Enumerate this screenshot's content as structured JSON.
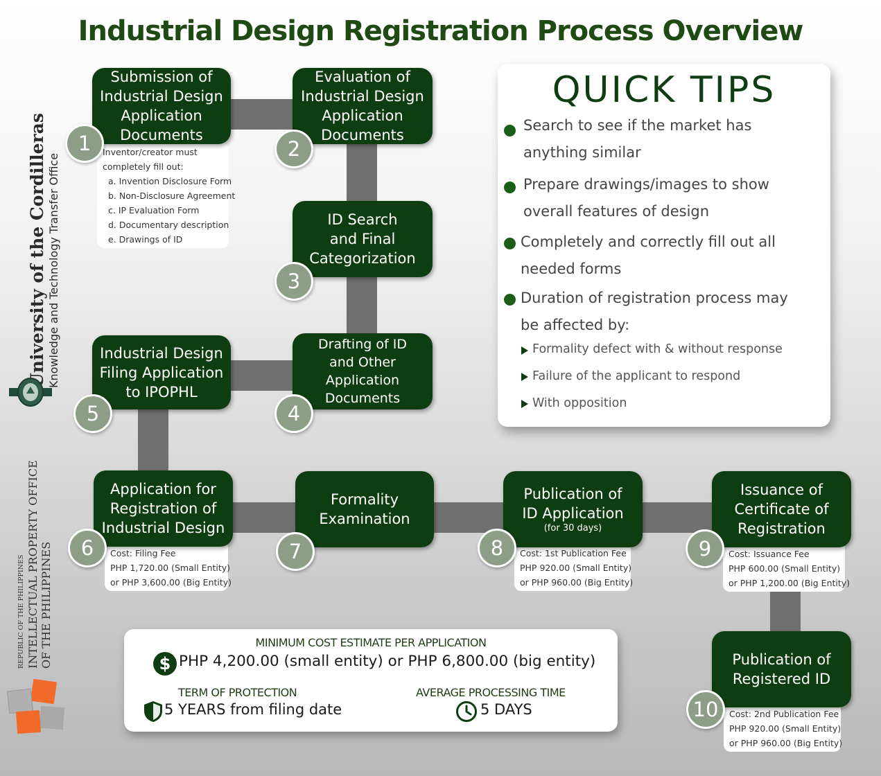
{
  "title": "Industrial Design Registration Process Overview",
  "sidebar": {
    "university": "University of the Cordilleras",
    "office": "Knowledge and Technology Transfer Office",
    "republic": "REPUBLIC OF THE PHILIPPINES",
    "ipo_line1": "INTELLECTUAL PROPERTY OFFICE",
    "ipo_line2": "OF THE PHILIPPINES"
  },
  "steps": [
    {
      "num": "1",
      "lines": [
        "Submission of",
        "Industrial Design",
        "Application",
        "Documents"
      ]
    },
    {
      "num": "2",
      "lines": [
        "Evaluation of",
        "Industrial Design",
        "Application",
        "Documents"
      ]
    },
    {
      "num": "3",
      "lines": [
        "ID Search",
        "and Final",
        "Categorization"
      ]
    },
    {
      "num": "4",
      "lines": [
        "Drafting of ID",
        "and Other",
        "Application",
        "Documents"
      ]
    },
    {
      "num": "5",
      "lines": [
        "Industrial Design",
        "Filing Application",
        "to IPOPHL"
      ]
    },
    {
      "num": "6",
      "lines": [
        "Application for",
        "Registration of",
        "Industrial Design"
      ]
    },
    {
      "num": "7",
      "lines": [
        "Formality",
        "Examination"
      ]
    },
    {
      "num": "8",
      "lines": [
        "Publication of",
        "ID Application"
      ],
      "sub": "(for 30 days)"
    },
    {
      "num": "9",
      "lines": [
        "Issuance of",
        "Certificate of",
        "Registration"
      ]
    },
    {
      "num": "10",
      "lines": [
        "Publication of",
        "Registered ID"
      ]
    }
  ],
  "notes": {
    "step1": [
      "Inventor/creator must",
      "completely fill out:",
      "a. Invention Disclosure Form",
      "b. Non-Disclosure Agreement",
      "c. IP Evaluation Form",
      "d. Documentary description",
      "e. Drawings of ID"
    ],
    "step6": [
      "Cost: Filing Fee",
      "PHP 1,720.00 (Small Entity)",
      "or PHP 3,600.00 (Big Entity)"
    ],
    "step8": [
      "Cost: 1st Publication Fee",
      "PHP 920.00 (Small Entity)",
      "or PHP 960.00 (Big Entity)"
    ],
    "step9": [
      "Cost: Issuance Fee",
      "PHP 600.00 (Small Entity)",
      "or PHP 1,200.00 (Big Entity)"
    ],
    "step10": [
      "Cost: 2nd Publication Fee",
      "PHP 920.00 (Small Entity)",
      "or PHP 960.00 (Big Entity)"
    ]
  },
  "tips": {
    "title": "QUICK TIPS",
    "items": [
      [
        "Search to see if the market has",
        "anything similar"
      ],
      [
        "Prepare drawings/images to show",
        "overall features of design"
      ],
      [
        "Completely and correctly fill out all",
        "needed forms"
      ],
      [
        "Duration of registration process may",
        "be affected by:"
      ]
    ],
    "subitems": [
      "Formality defect with & without response",
      "Failure of the applicant to respond",
      "With opposition"
    ]
  },
  "cost_box": {
    "heading": "MINIMUM COST ESTIMATE PER APPLICATION",
    "amount": "PHP 4,200.00 (small entity) or PHP 6,800.00 (big entity)",
    "term_label": "TERM OF PROTECTION",
    "term_value": "5 YEARS from filing date",
    "time_label": "AVERAGE PROCESSING TIME",
    "time_value": "5 DAYS"
  },
  "colors": {
    "box": "#0f3d12",
    "badge": "#8c9e86",
    "connector": "#707070",
    "title": "#1f4a14",
    "logo_orange": "#f26a2a",
    "logo_gray": "#9a9a9a"
  }
}
